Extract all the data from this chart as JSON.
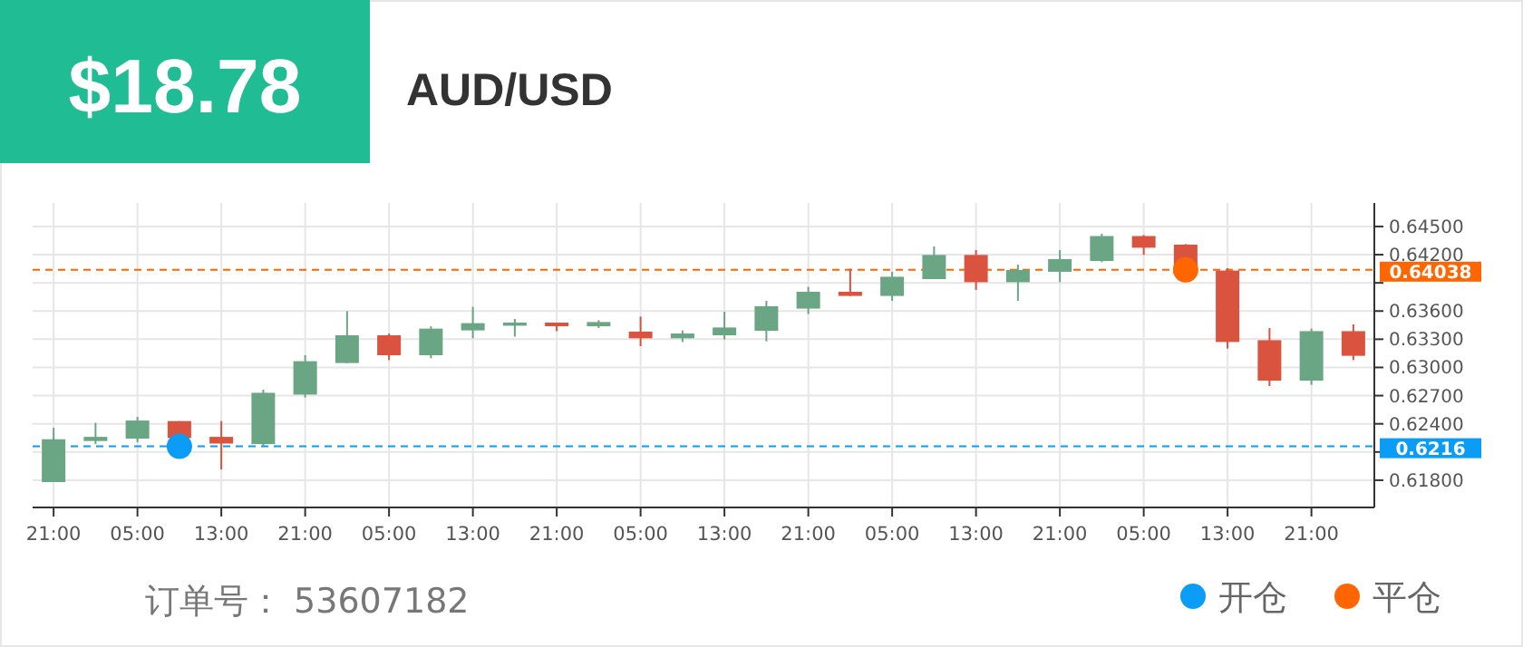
{
  "chart_data": {
    "type": "candlestick",
    "title": "AUD/USD",
    "annotations": [
      "$18.78",
      "订单号：  53607182"
    ],
    "categories": [
      "21:00",
      null,
      "05:00",
      null,
      "13:00",
      null,
      "21:00",
      null,
      "05:00",
      null,
      "13:00",
      null,
      "21:00",
      null,
      "05:00",
      null,
      "13:00",
      null,
      "21:00",
      null,
      "05:00",
      null,
      "13:00",
      null,
      "21:00",
      null,
      "05:00",
      null,
      "13:00",
      null,
      "21:00",
      null
    ],
    "ohlc": [
      [
        0.6178,
        0.62358,
        0.6178,
        0.62236
      ],
      [
        0.62217,
        0.6241,
        0.62184,
        0.62261
      ],
      [
        0.62242,
        0.62474,
        0.62203,
        0.62435
      ],
      [
        0.62429,
        0.62429,
        0.62248,
        0.62248
      ],
      [
        0.62261,
        0.62429,
        0.61914,
        0.6219
      ],
      [
        0.62184,
        0.62763,
        0.62165,
        0.6273
      ],
      [
        0.62711,
        0.6313,
        0.6268,
        0.63066
      ],
      [
        0.63047,
        0.63599,
        0.63047,
        0.63342
      ],
      [
        0.63342,
        0.63361,
        0.63078,
        0.6313
      ],
      [
        0.6313,
        0.63438,
        0.63097,
        0.63413
      ],
      [
        0.63394,
        0.63645,
        0.6331,
        0.63471
      ],
      [
        0.63444,
        0.63516,
        0.63328,
        0.63477
      ],
      [
        0.63477,
        0.63477,
        0.63386,
        0.63438
      ],
      [
        0.63438,
        0.63502,
        0.6342,
        0.63483
      ],
      [
        0.63381,
        0.63541,
        0.63226,
        0.6331
      ],
      [
        0.6331,
        0.63394,
        0.63271,
        0.63361
      ],
      [
        0.63342,
        0.63593,
        0.63298,
        0.63425
      ],
      [
        0.6339,
        0.63709,
        0.63278,
        0.63651
      ],
      [
        0.63626,
        0.63857,
        0.63568,
        0.63805
      ],
      [
        0.63805,
        0.6405,
        0.63761,
        0.63761
      ],
      [
        0.63761,
        0.64018,
        0.63709,
        0.63965
      ],
      [
        0.6394,
        0.64288,
        0.6394,
        0.64197
      ],
      [
        0.64197,
        0.64249,
        0.63825,
        0.63907
      ],
      [
        0.63907,
        0.64095,
        0.63709,
        0.64037
      ],
      [
        0.64018,
        0.64249,
        0.63907,
        0.64153
      ],
      [
        0.64133,
        0.64423,
        0.6412,
        0.64398
      ],
      [
        0.64398,
        0.64409,
        0.64197,
        0.64274
      ],
      [
        0.64307,
        0.64313,
        0.6405,
        0.6405
      ],
      [
        0.64031,
        0.64056,
        0.63201,
        0.63271
      ],
      [
        0.6329,
        0.63419,
        0.62802,
        0.62859
      ],
      [
        0.62859,
        0.63413,
        0.62815,
        0.63386
      ],
      [
        0.63386,
        0.63458,
        0.63078,
        0.63124
      ]
    ],
    "series": [
      {
        "name": "开仓",
        "type": "scatter",
        "marker": "circle",
        "color": "#0b9cf6",
        "values": [
          null,
          null,
          null,
          0.6216,
          null,
          null,
          null,
          null,
          null,
          null,
          null,
          null,
          null,
          null,
          null,
          null,
          null,
          null,
          null,
          null,
          null,
          null,
          null,
          null,
          null,
          null,
          null,
          null,
          null,
          null,
          null,
          null
        ]
      },
      {
        "name": "平仓",
        "type": "scatter",
        "marker": "circle",
        "color": "#ff6600",
        "values": [
          null,
          null,
          null,
          null,
          null,
          null,
          null,
          null,
          null,
          null,
          null,
          null,
          null,
          null,
          null,
          null,
          null,
          null,
          null,
          null,
          null,
          null,
          null,
          null,
          null,
          null,
          null,
          0.64038,
          null,
          null,
          null,
          null
        ]
      }
    ],
    "ylim": [
      0.6151,
      0.6475
    ],
    "yticks": [
      {
        "value": 0.645,
        "label": "0.64500"
      },
      {
        "value": 0.642,
        "label": "0.64200"
      },
      {
        "value": 0.639,
        "label": null
      },
      {
        "value": 0.636,
        "label": "0.63600"
      },
      {
        "value": 0.633,
        "label": "0.63300"
      },
      {
        "value": 0.63,
        "label": "0.63000"
      },
      {
        "value": 0.627,
        "label": "0.62700"
      },
      {
        "value": 0.624,
        "label": "0.62400"
      },
      {
        "value": 0.621,
        "label": null
      },
      {
        "value": 0.618,
        "label": "0.61800"
      }
    ],
    "ref_lines": [
      {
        "axis": "y",
        "value": 0.64038,
        "label": "0.64038",
        "color": "#ff6600",
        "line_style": "dashed"
      },
      {
        "axis": "y",
        "value": 0.6216,
        "label": "0.6216",
        "color": "#0b9cf6",
        "line_style": "dashed"
      }
    ],
    "grid": true,
    "legend": "bottom right"
  }
}
